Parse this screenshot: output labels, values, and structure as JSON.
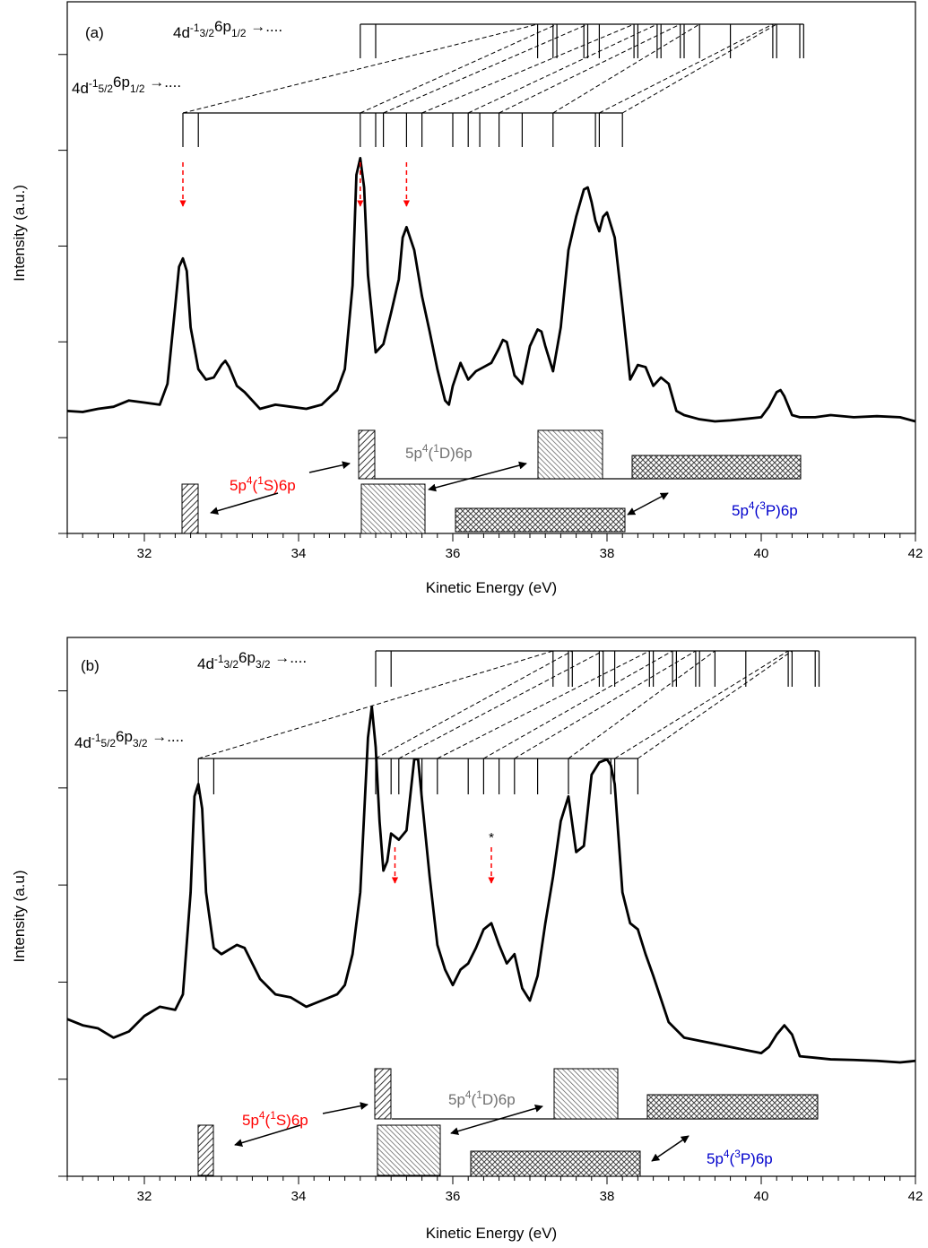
{
  "chart_data": [
    {
      "panel_label": "(a)",
      "type": "line",
      "xlabel": "Kinetic Energy (eV)",
      "ylabel": "Intensity (a.u.)",
      "xlim": [
        31,
        42
      ],
      "x_ticks": [
        "32",
        "34",
        "36",
        "38",
        "40",
        "42"
      ],
      "x": [
        31.0,
        31.2,
        31.4,
        31.6,
        31.8,
        32.0,
        32.2,
        32.3,
        32.4,
        32.45,
        32.5,
        32.55,
        32.6,
        32.7,
        32.8,
        32.9,
        33.0,
        33.05,
        33.1,
        33.2,
        33.3,
        33.5,
        33.7,
        33.9,
        34.1,
        34.3,
        34.5,
        34.6,
        34.7,
        34.75,
        34.8,
        34.85,
        34.9,
        35.0,
        35.1,
        35.2,
        35.3,
        35.35,
        35.4,
        35.5,
        35.6,
        35.7,
        35.8,
        35.9,
        35.95,
        36.0,
        36.1,
        36.2,
        36.3,
        36.4,
        36.5,
        36.6,
        36.65,
        36.7,
        36.8,
        36.9,
        37.0,
        37.1,
        37.15,
        37.2,
        37.3,
        37.4,
        37.5,
        37.6,
        37.7,
        37.75,
        37.8,
        37.85,
        37.9,
        37.95,
        38.0,
        38.1,
        38.2,
        38.3,
        38.4,
        38.5,
        38.6,
        38.7,
        38.8,
        38.9,
        39.0,
        39.2,
        39.4,
        39.6,
        39.8,
        40.0,
        40.1,
        40.2,
        40.25,
        40.3,
        40.4,
        40.5,
        40.7,
        40.9,
        41.2,
        41.5,
        41.8,
        42.0
      ],
      "y": [
        0.05,
        0.045,
        0.06,
        0.07,
        0.1,
        0.09,
        0.08,
        0.18,
        0.55,
        0.74,
        0.78,
        0.72,
        0.45,
        0.25,
        0.2,
        0.21,
        0.27,
        0.29,
        0.26,
        0.17,
        0.14,
        0.06,
        0.08,
        0.07,
        0.06,
        0.08,
        0.15,
        0.25,
        0.65,
        1.18,
        1.26,
        1.12,
        0.7,
        0.33,
        0.37,
        0.52,
        0.68,
        0.88,
        0.93,
        0.82,
        0.6,
        0.43,
        0.25,
        0.1,
        0.08,
        0.17,
        0.28,
        0.2,
        0.24,
        0.26,
        0.28,
        0.35,
        0.39,
        0.38,
        0.22,
        0.18,
        0.36,
        0.44,
        0.43,
        0.36,
        0.24,
        0.45,
        0.82,
        0.98,
        1.11,
        1.12,
        1.05,
        0.96,
        0.91,
        0.98,
        1.0,
        0.88,
        0.55,
        0.2,
        0.27,
        0.26,
        0.17,
        0.21,
        0.18,
        0.05,
        0.03,
        0.01,
        0.0,
        0.005,
        0.012,
        0.02,
        0.07,
        0.14,
        0.15,
        0.12,
        0.03,
        0.02,
        0.02,
        0.03,
        0.02,
        0.025,
        0.02,
        0.0
      ],
      "y_ticks_count": 6,
      "lines": [
        {
          "label_main": "4d",
          "label_sup": "-1",
          "label_sub": "5/2",
          "label_tail": "6p",
          "label_sub2": "1/2",
          "label_arrow": "→....",
          "origin": 32.5,
          "ticks": [
            32.5,
            32.7,
            34.8,
            35.0,
            35.1,
            35.4,
            35.6,
            36.0,
            36.2,
            36.35,
            36.6,
            36.9,
            37.3,
            37.85,
            37.9,
            38.2
          ]
        },
        {
          "label_main": "4d",
          "label_sup": "-1",
          "label_sub": "3/2",
          "label_tail": "6p",
          "label_sub2": "1/2",
          "label_arrow": "→....",
          "origin": 34.8,
          "ticks": [
            34.8,
            35.0,
            37.1,
            37.3,
            37.35,
            37.7,
            37.75,
            37.9,
            38.35,
            38.4,
            38.65,
            38.7,
            38.95,
            39.0,
            39.2,
            39.6,
            40.15,
            40.2,
            40.5,
            40.55
          ]
        }
      ],
      "red_arrows_at": [
        32.5,
        34.8,
        35.4
      ],
      "bands": [
        {
          "label": "5p⁴(¹S)6p",
          "sup1": "4",
          "sup2": "1",
          "state": "S",
          "color": "#ff0000"
        },
        {
          "label": "5p⁴(¹D)6p",
          "sup1": "4",
          "sup2": "1",
          "state": "D",
          "color": "#707070"
        },
        {
          "label": "5p⁴(³P)6p",
          "sup1": "4",
          "sup2": "3",
          "state": "P",
          "color": "#0000cc"
        }
      ]
    },
    {
      "panel_label": "(b)",
      "type": "line",
      "xlabel": "Kinetic Energy (eV)",
      "ylabel": "Intensity (a.u)",
      "xlim": [
        31,
        42
      ],
      "x_ticks": [
        "32",
        "34",
        "36",
        "38",
        "40",
        "42"
      ],
      "x": [
        31.0,
        31.2,
        31.4,
        31.6,
        31.8,
        32.0,
        32.2,
        32.4,
        32.5,
        32.6,
        32.65,
        32.7,
        32.75,
        32.8,
        32.9,
        33.0,
        33.2,
        33.3,
        33.5,
        33.7,
        33.9,
        34.1,
        34.3,
        34.5,
        34.6,
        34.7,
        34.8,
        34.9,
        34.95,
        35.0,
        35.05,
        35.1,
        35.15,
        35.2,
        35.3,
        35.4,
        35.5,
        35.55,
        35.6,
        35.7,
        35.8,
        35.9,
        36.0,
        36.1,
        36.2,
        36.3,
        36.4,
        36.5,
        36.6,
        36.7,
        36.8,
        36.9,
        37.0,
        37.1,
        37.2,
        37.3,
        37.4,
        37.5,
        37.6,
        37.7,
        37.8,
        37.9,
        38.0,
        38.05,
        38.1,
        38.2,
        38.3,
        38.4,
        38.5,
        38.6,
        38.8,
        39.0,
        39.2,
        39.4,
        39.6,
        39.8,
        40.0,
        40.1,
        40.2,
        40.3,
        40.4,
        40.5,
        40.7,
        40.9,
        41.2,
        41.5,
        41.8,
        42.0
      ],
      "y": [
        0.14,
        0.12,
        0.11,
        0.08,
        0.1,
        0.15,
        0.18,
        0.17,
        0.22,
        0.55,
        0.86,
        0.9,
        0.82,
        0.55,
        0.37,
        0.35,
        0.38,
        0.37,
        0.27,
        0.22,
        0.21,
        0.18,
        0.2,
        0.22,
        0.25,
        0.35,
        0.55,
        1.05,
        1.15,
        1.02,
        0.78,
        0.62,
        0.65,
        0.74,
        0.72,
        0.75,
        0.98,
        0.98,
        0.85,
        0.6,
        0.38,
        0.3,
        0.25,
        0.3,
        0.32,
        0.37,
        0.43,
        0.45,
        0.38,
        0.32,
        0.35,
        0.24,
        0.2,
        0.28,
        0.45,
        0.6,
        0.78,
        0.86,
        0.68,
        0.7,
        0.93,
        0.97,
        0.98,
        0.96,
        0.9,
        0.55,
        0.45,
        0.43,
        0.35,
        0.28,
        0.13,
        0.08,
        0.07,
        0.06,
        0.05,
        0.04,
        0.03,
        0.05,
        0.09,
        0.12,
        0.09,
        0.02,
        0.015,
        0.01,
        0.008,
        0.005,
        0.0,
        0.005
      ],
      "y_ticks_count": 6,
      "lines": [
        {
          "label_main": "4d",
          "label_sup": "-1",
          "label_sub": "5/2",
          "label_tail": "6p",
          "label_sub2": "3/2",
          "label_arrow": "→....",
          "origin": 32.7,
          "ticks": [
            32.7,
            32.9,
            35.0,
            35.2,
            35.3,
            35.6,
            35.8,
            36.2,
            36.4,
            36.6,
            36.8,
            37.1,
            37.5,
            38.05,
            38.1,
            38.4
          ]
        },
        {
          "label_main": "4d",
          "label_sup": "-1",
          "label_sub": "3/2",
          "label_tail": "6p",
          "label_sub2": "3/2",
          "label_arrow": "→....",
          "origin": 35.0,
          "ticks": [
            35.0,
            35.2,
            37.3,
            37.5,
            37.55,
            37.9,
            37.95,
            38.1,
            38.55,
            38.6,
            38.85,
            38.9,
            39.15,
            39.2,
            39.4,
            39.8,
            40.35,
            40.4,
            40.7,
            40.75
          ]
        }
      ],
      "red_arrows_at": [
        35.25,
        36.5
      ],
      "asterisk_at": 36.5,
      "asterisk": "*",
      "bands": [
        {
          "label": "5p⁴(¹S)6p",
          "sup1": "4",
          "sup2": "1",
          "state": "S",
          "color": "#ff0000"
        },
        {
          "label": "5p⁴(¹D)6p",
          "sup1": "4",
          "sup2": "1",
          "state": "D",
          "color": "#707070"
        },
        {
          "label": "5p⁴(³P)6p",
          "sup1": "4",
          "sup2": "3",
          "state": "P",
          "color": "#0000cc"
        }
      ]
    }
  ]
}
